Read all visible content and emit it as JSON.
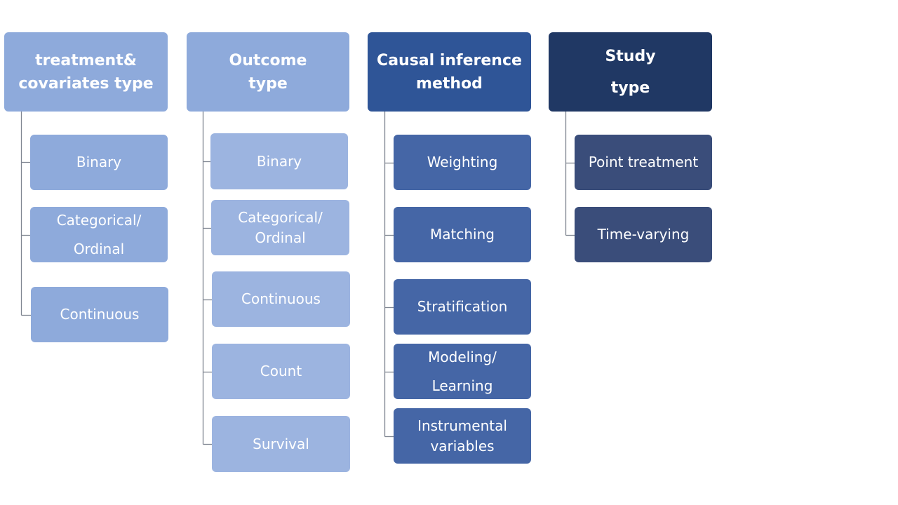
{
  "colors": {
    "col1_header": "#8eaadb",
    "col1_child": "#8eaadb",
    "col2_header": "#8eaadb",
    "col2_child": "#9cb4e0",
    "col3_header": "#2f5597",
    "col3_child": "#4566a6",
    "col4_header": "#203864",
    "col4_child": "#3a4d7a",
    "connector": "#7f8591",
    "text": "#ffffff"
  },
  "columns": [
    {
      "header": "treatment&\ncovariates type",
      "items": [
        "Binary",
        "Categorical/\nOrdinal",
        "Continuous"
      ]
    },
    {
      "header": "Outcome\ntype",
      "items": [
        "Binary",
        "Categorical/\nOrdinal",
        "Continuous",
        "Count",
        "Survival"
      ]
    },
    {
      "header": "Causal inference\nmethod",
      "items": [
        "Weighting",
        "Matching",
        "Stratification",
        "Modeling/\nLearning",
        "Instrumental\nvariables"
      ]
    },
    {
      "header": "Study\ntype",
      "items": [
        "Point treatment",
        "Time-varying"
      ]
    }
  ]
}
